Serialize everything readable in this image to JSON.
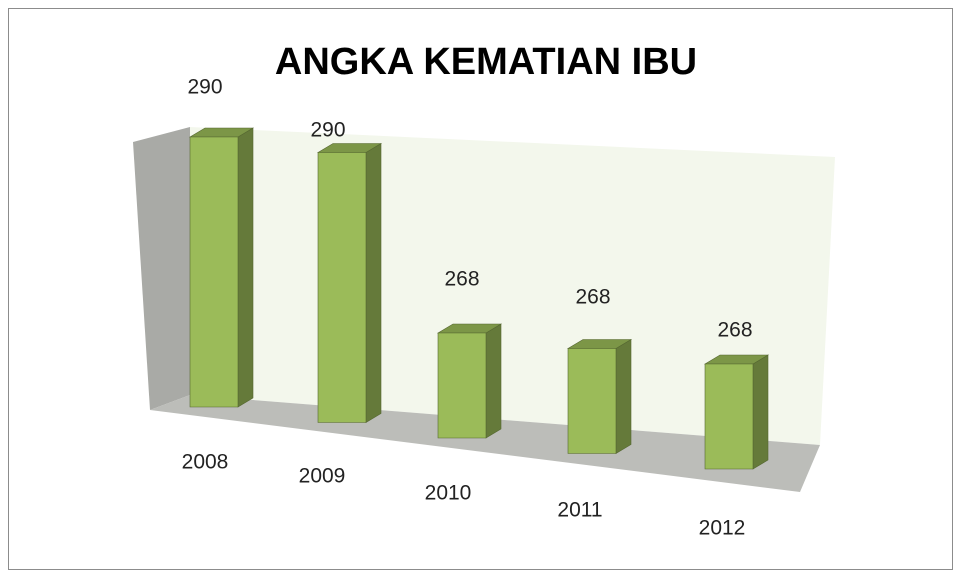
{
  "chart_data": {
    "type": "bar3d",
    "title": "ANGKA KEMATIAN IBU",
    "categories": [
      "2008",
      "2009",
      "2010",
      "2011",
      "2012"
    ],
    "values": [
      290,
      290,
      268,
      268,
      268
    ],
    "color": "#9bbb59",
    "ylim": [
      254,
      292
    ]
  }
}
